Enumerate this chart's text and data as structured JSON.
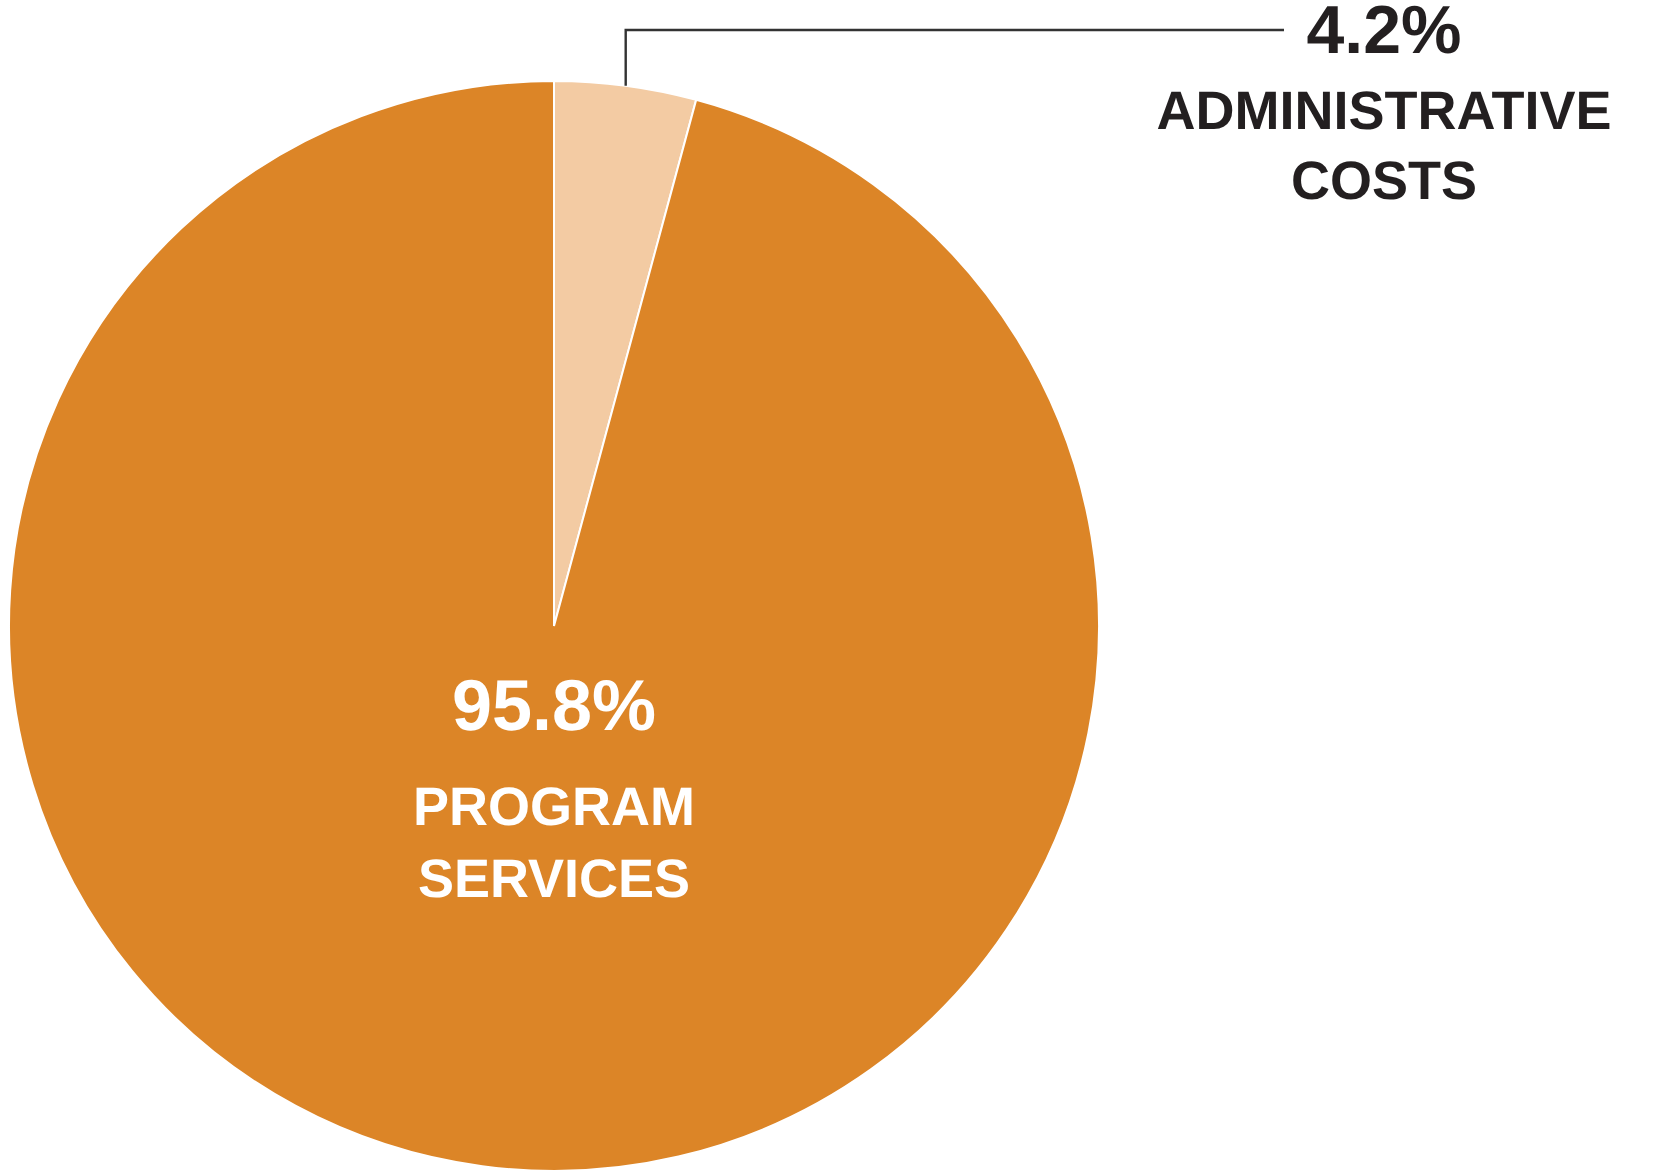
{
  "chart_data": {
    "type": "pie",
    "categories": [
      "ADMINISTRATIVE COSTS",
      "PROGRAM SERVICES"
    ],
    "values": [
      4.2,
      95.8
    ],
    "colors": [
      "#f3cba3",
      "#dc8527"
    ],
    "value_labels": [
      "4.2%",
      "95.8%"
    ],
    "legend": false
  }
}
